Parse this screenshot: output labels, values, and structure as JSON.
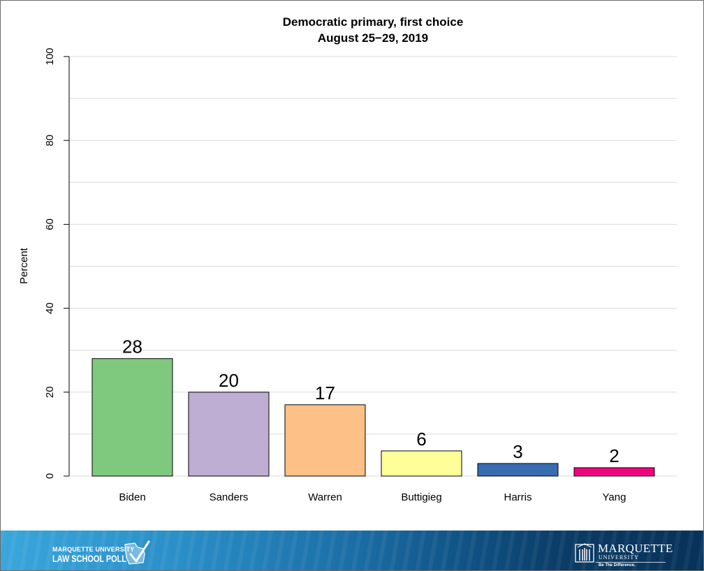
{
  "chart_data": {
    "type": "bar",
    "title": "Democratic primary, first choice",
    "subtitle": "August 25−29, 2019",
    "ylabel": "Percent",
    "xlabel": "",
    "ylim": [
      0,
      100
    ],
    "yticks": [
      0,
      20,
      40,
      60,
      80,
      100
    ],
    "grid": true,
    "categories": [
      "Biden",
      "Sanders",
      "Warren",
      "Buttigieg",
      "Harris",
      "Yang"
    ],
    "values": [
      28,
      20,
      17,
      6,
      3,
      2
    ],
    "data_labels": [
      "28",
      "20",
      "17",
      "6",
      "3",
      "2"
    ],
    "colors": [
      "#7fc97f",
      "#beaed4",
      "#fdc086",
      "#ffff99",
      "#386cb0",
      "#f0027f"
    ]
  },
  "footer": {
    "left_logo": {
      "line1": "MARQUETTE UNIVERSITY",
      "line2": "LAW SCHOOL POLL",
      "icon": "wisconsin-checkmark-icon"
    },
    "right_logo": {
      "name": "MARQUETTE",
      "sub": "UNIVERSITY",
      "tagline": "Be The Difference.",
      "icon": "building-crest-icon"
    },
    "colors": {
      "start": "#3aa6db",
      "end": "#08325a"
    }
  }
}
